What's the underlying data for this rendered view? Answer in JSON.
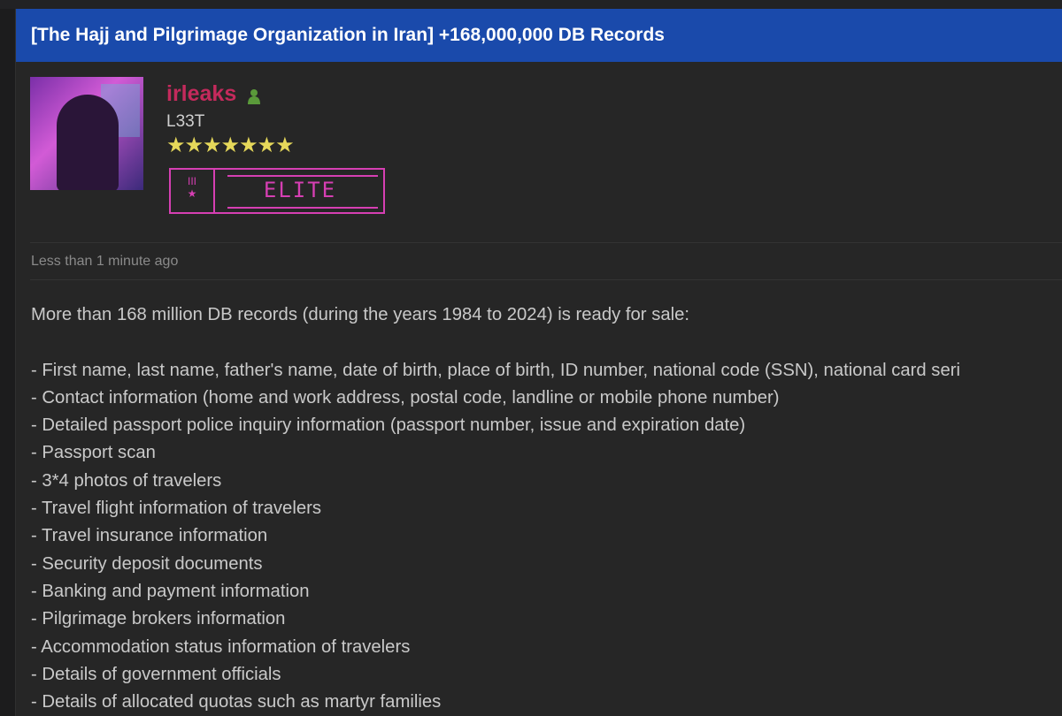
{
  "thread": {
    "title": "[The Hajj and Pilgrimage Organization in Iran] +168,000,000 DB Records"
  },
  "post": {
    "username": "irleaks",
    "user_color": "#c42a5c",
    "online_icon": "user-online-icon",
    "rank": "L33T",
    "stars": "★★★★★★★",
    "badge": "ELITE",
    "badge_color": "#d63fb3",
    "timestamp": "Less than 1 minute ago",
    "intro": "More than 168 million DB records (during the years 1984 to 2024) is ready for sale:",
    "items": [
      "- First name, last name, father's name, date of birth, place of birth, ID number, national code (SSN), national card seri",
      "- Contact information (home and work address, postal code, landline or mobile phone number)",
      "- Detailed passport police inquiry information (passport number, issue and expiration date)",
      "- Passport scan",
      "- 3*4 photos of travelers",
      "- Travel flight information of travelers",
      "- Travel insurance information",
      "- Security deposit documents",
      "- Banking and payment information",
      "- Pilgrimage brokers information",
      "- Accommodation status information of travelers",
      "- Details of government officials",
      "- Details of allocated quotas such as martyr families"
    ]
  }
}
